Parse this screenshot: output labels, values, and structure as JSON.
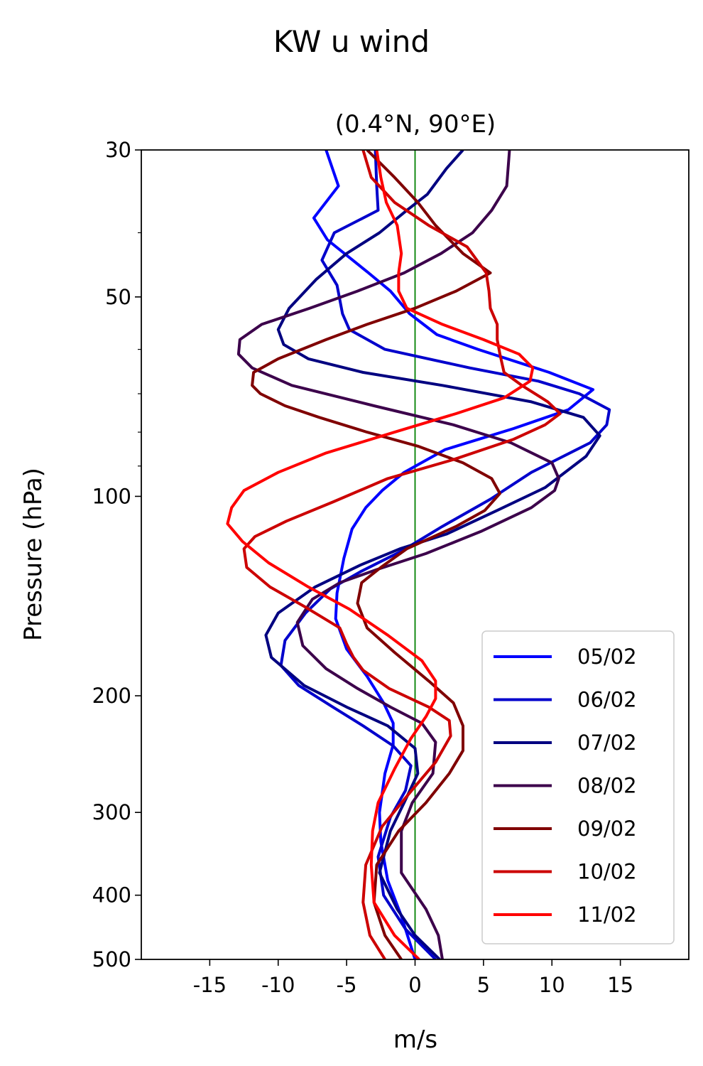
{
  "chart_data": {
    "type": "line",
    "title": "KW u wind",
    "subtitle": "(0.4°N, 90°E)",
    "xlabel": "m/s",
    "ylabel": "Pressure (hPa)",
    "xlim": [
      -20,
      20
    ],
    "ylim": [
      500,
      30
    ],
    "yscale": "log",
    "xticks": [
      -15,
      -10,
      -5,
      0,
      5,
      10,
      15
    ],
    "xtick_labels": [
      "-15",
      "-10",
      "-5",
      "0",
      "5",
      "10",
      "15"
    ],
    "yticks": [
      30,
      50,
      100,
      200,
      300,
      400,
      500
    ],
    "ytick_labels": [
      "30",
      "50",
      "100",
      "200",
      "300",
      "400",
      "500"
    ],
    "yminor_ticks": [
      40,
      60,
      70,
      80,
      90
    ],
    "reference_line": {
      "x": 0,
      "color": "#008000"
    },
    "grid": false,
    "legend_position": "lower right",
    "series": [
      {
        "name": "05/02",
        "color": "#0000ff",
        "points": [
          [
            -6.5,
            30
          ],
          [
            -5.6,
            34
          ],
          [
            -7.4,
            38
          ],
          [
            -6.4,
            41
          ],
          [
            -3.4,
            46
          ],
          [
            -1.8,
            49
          ],
          [
            -0.4,
            53
          ],
          [
            1.6,
            57
          ],
          [
            4.6,
            60
          ],
          [
            9.8,
            65
          ],
          [
            13,
            69
          ],
          [
            11.2,
            74
          ],
          [
            7.2,
            79
          ],
          [
            2.2,
            85
          ],
          [
            -0.8,
            92
          ],
          [
            -2.4,
            98
          ],
          [
            -3.6,
            104
          ],
          [
            -4.6,
            112
          ],
          [
            -5.2,
            124
          ],
          [
            -5.7,
            140
          ],
          [
            -5.8,
            153
          ],
          [
            -5,
            170
          ],
          [
            -3.5,
            187
          ],
          [
            -2.3,
            205
          ],
          [
            -1.6,
            220
          ],
          [
            -1.6,
            237
          ],
          [
            -2.2,
            262
          ],
          [
            -2.6,
            300
          ],
          [
            -2.5,
            332
          ],
          [
            -2,
            380
          ],
          [
            -1,
            430
          ],
          [
            0,
            500
          ]
        ]
      },
      {
        "name": "06/02",
        "color": "#0000cc",
        "points": [
          [
            -2.9,
            30
          ],
          [
            -2.8,
            34
          ],
          [
            -2.7,
            37
          ],
          [
            -5.9,
            40
          ],
          [
            -6.8,
            44
          ],
          [
            -5.7,
            48
          ],
          [
            -5.3,
            53
          ],
          [
            -4.8,
            56
          ],
          [
            -2.2,
            60
          ],
          [
            4,
            64
          ],
          [
            9,
            67
          ],
          [
            12,
            70
          ],
          [
            14.2,
            74
          ],
          [
            14,
            78
          ],
          [
            12.8,
            83
          ],
          [
            8.5,
            92
          ],
          [
            5.5,
            101
          ],
          [
            2,
            111
          ],
          [
            -1,
            121
          ],
          [
            -4,
            130
          ],
          [
            -6.2,
            138
          ],
          [
            -8,
            150
          ],
          [
            -9.5,
            165
          ],
          [
            -9.8,
            180
          ],
          [
            -8.5,
            193
          ],
          [
            -6,
            208
          ],
          [
            -3.8,
            222
          ],
          [
            -1.6,
            238
          ],
          [
            -0.3,
            255
          ],
          [
            -0.7,
            278
          ],
          [
            -1.8,
            305
          ],
          [
            -2.7,
            350
          ],
          [
            -2.3,
            400
          ],
          [
            -0.7,
            450
          ],
          [
            1.5,
            500
          ]
        ]
      },
      {
        "name": "07/02",
        "color": "#000080",
        "points": [
          [
            3.5,
            30
          ],
          [
            2.3,
            32
          ],
          [
            0.9,
            35
          ],
          [
            -0.6,
            37
          ],
          [
            -2.6,
            40
          ],
          [
            -5,
            43
          ],
          [
            -7.2,
            47
          ],
          [
            -9.2,
            52
          ],
          [
            -10,
            56
          ],
          [
            -9.6,
            59
          ],
          [
            -7.8,
            62
          ],
          [
            -3.8,
            65
          ],
          [
            2,
            68
          ],
          [
            8.5,
            72
          ],
          [
            12.3,
            76
          ],
          [
            13.5,
            81
          ],
          [
            12.5,
            87
          ],
          [
            9.5,
            97
          ],
          [
            6,
            105
          ],
          [
            2.3,
            114
          ],
          [
            -1.1,
            120
          ],
          [
            -4,
            127
          ],
          [
            -7.3,
            137
          ],
          [
            -10,
            150
          ],
          [
            -10.9,
            162
          ],
          [
            -10.5,
            175
          ],
          [
            -8.1,
            193
          ],
          [
            -5,
            208
          ],
          [
            -2,
            222
          ],
          [
            0,
            240
          ],
          [
            0.2,
            262
          ],
          [
            -0.8,
            290
          ],
          [
            -1.8,
            320
          ],
          [
            -2.6,
            370
          ],
          [
            -1.3,
            420
          ],
          [
            0,
            460
          ],
          [
            1.8,
            500
          ]
        ]
      },
      {
        "name": "08/02",
        "color": "#3c004b",
        "points": [
          [
            6.9,
            30
          ],
          [
            6.7,
            34
          ],
          [
            5.6,
            37
          ],
          [
            4.2,
            40
          ],
          [
            1.9,
            43
          ],
          [
            -0.8,
            46
          ],
          [
            -4.2,
            49
          ],
          [
            -7.7,
            52
          ],
          [
            -11.2,
            55
          ],
          [
            -12.8,
            58
          ],
          [
            -12.9,
            61
          ],
          [
            -11.9,
            64
          ],
          [
            -9,
            68
          ],
          [
            -3,
            73
          ],
          [
            2.8,
            78
          ],
          [
            7,
            83
          ],
          [
            10,
            89
          ],
          [
            10.5,
            94
          ],
          [
            10.2,
            98
          ],
          [
            8.5,
            104
          ],
          [
            4.8,
            113
          ],
          [
            0.8,
            122
          ],
          [
            -2.8,
            129
          ],
          [
            -5.5,
            135
          ],
          [
            -7.5,
            143
          ],
          [
            -8.6,
            155
          ],
          [
            -8.2,
            168
          ],
          [
            -6.5,
            182
          ],
          [
            -4.2,
            195
          ],
          [
            -1.8,
            208
          ],
          [
            0.5,
            220
          ],
          [
            1.5,
            235
          ],
          [
            1.3,
            262
          ],
          [
            -0.2,
            290
          ],
          [
            -1,
            320
          ],
          [
            -1,
            370
          ],
          [
            0.8,
            420
          ],
          [
            1.7,
            460
          ],
          [
            2,
            500
          ]
        ]
      },
      {
        "name": "09/02",
        "color": "#800000",
        "points": [
          [
            -3.5,
            30
          ],
          [
            -1.5,
            33
          ],
          [
            0.2,
            36
          ],
          [
            1.5,
            39
          ],
          [
            3.5,
            43
          ],
          [
            5.5,
            46
          ],
          [
            3,
            49
          ],
          [
            0,
            52
          ],
          [
            -3.5,
            55
          ],
          [
            -6.5,
            58
          ],
          [
            -10,
            62
          ],
          [
            -11.8,
            65
          ],
          [
            -11.9,
            68
          ],
          [
            -11.3,
            70
          ],
          [
            -9.5,
            73
          ],
          [
            -7,
            76
          ],
          [
            -3.5,
            80
          ],
          [
            0.2,
            84
          ],
          [
            3.5,
            89
          ],
          [
            5.6,
            94
          ],
          [
            6.2,
            99
          ],
          [
            5.1,
            105
          ],
          [
            3,
            111
          ],
          [
            -0.6,
            120
          ],
          [
            -2.5,
            128
          ],
          [
            -3.9,
            135
          ],
          [
            -4.2,
            145
          ],
          [
            -3.5,
            158
          ],
          [
            -1.5,
            172
          ],
          [
            1,
            190
          ],
          [
            2.8,
            205
          ],
          [
            3.5,
            222
          ],
          [
            3.5,
            242
          ],
          [
            2.5,
            262
          ],
          [
            0.8,
            290
          ],
          [
            -1.2,
            320
          ],
          [
            -2.8,
            360
          ],
          [
            -3,
            410
          ],
          [
            -2.2,
            460
          ],
          [
            -1,
            500
          ]
        ]
      },
      {
        "name": "10/02",
        "color": "#cc0000",
        "points": [
          [
            -3.8,
            30
          ],
          [
            -3.2,
            33
          ],
          [
            -1.5,
            36
          ],
          [
            1,
            39
          ],
          [
            3.8,
            42
          ],
          [
            5.2,
            46
          ],
          [
            5.4,
            49
          ],
          [
            5.5,
            52
          ],
          [
            6,
            55
          ],
          [
            6,
            58
          ],
          [
            6.2,
            61
          ],
          [
            6.5,
            65
          ],
          [
            7.8,
            68
          ],
          [
            9.7,
            72
          ],
          [
            10.6,
            75
          ],
          [
            9.5,
            78
          ],
          [
            7.2,
            82
          ],
          [
            2.8,
            88
          ],
          [
            -2,
            94
          ],
          [
            -6,
            102
          ],
          [
            -9.4,
            109
          ],
          [
            -11.7,
            115
          ],
          [
            -12.5,
            120
          ],
          [
            -12.3,
            128
          ],
          [
            -10.6,
            137
          ],
          [
            -8,
            147
          ],
          [
            -5.5,
            158
          ],
          [
            -5,
            167
          ],
          [
            -4.5,
            175
          ],
          [
            -3.8,
            183
          ],
          [
            -1.9,
            195
          ],
          [
            1,
            208
          ],
          [
            2.5,
            218
          ],
          [
            2.6,
            230
          ],
          [
            1.5,
            252
          ],
          [
            -0.5,
            282
          ],
          [
            -2.4,
            315
          ],
          [
            -3.6,
            360
          ],
          [
            -3.8,
            410
          ],
          [
            -3.3,
            460
          ],
          [
            -2.2,
            500
          ]
        ]
      },
      {
        "name": "11/02",
        "color": "#ff0000",
        "points": [
          [
            -2.8,
            30
          ],
          [
            -2.5,
            33
          ],
          [
            -2.1,
            36
          ],
          [
            -1.3,
            39
          ],
          [
            -1,
            43
          ],
          [
            -1.2,
            46
          ],
          [
            -1.2,
            49
          ],
          [
            -0.6,
            52
          ],
          [
            2,
            55
          ],
          [
            5,
            58
          ],
          [
            7.6,
            61
          ],
          [
            8.6,
            64
          ],
          [
            8.4,
            67
          ],
          [
            6.5,
            71
          ],
          [
            3,
            75
          ],
          [
            -1.5,
            80
          ],
          [
            -6.5,
            86
          ],
          [
            -10,
            92
          ],
          [
            -12.5,
            98
          ],
          [
            -13.4,
            104
          ],
          [
            -13.7,
            110
          ],
          [
            -12.6,
            117
          ],
          [
            -10.7,
            126
          ],
          [
            -7.8,
            137
          ],
          [
            -4.8,
            148
          ],
          [
            -2,
            162
          ],
          [
            0.5,
            177
          ],
          [
            1.5,
            190
          ],
          [
            1.5,
            202
          ],
          [
            0.8,
            215
          ],
          [
            -0.3,
            232
          ],
          [
            -1.5,
            258
          ],
          [
            -2.7,
            290
          ],
          [
            -3.1,
            320
          ],
          [
            -3.2,
            360
          ],
          [
            -3,
            410
          ],
          [
            -1.5,
            460
          ],
          [
            0.3,
            500
          ]
        ]
      }
    ]
  }
}
